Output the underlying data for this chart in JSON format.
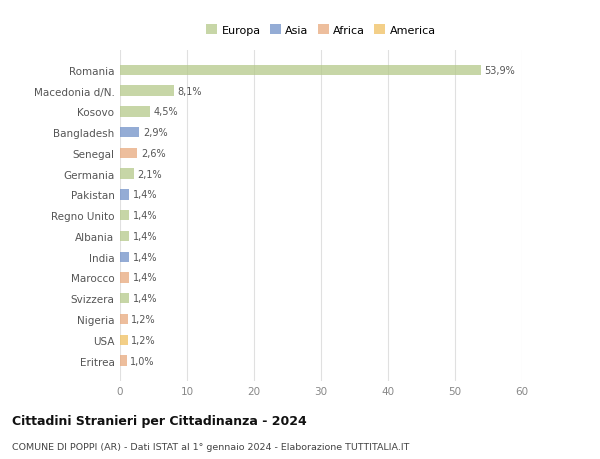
{
  "categories": [
    "Eritrea",
    "USA",
    "Nigeria",
    "Svizzera",
    "Marocco",
    "India",
    "Albania",
    "Regno Unito",
    "Pakistan",
    "Germania",
    "Senegal",
    "Bangladesh",
    "Kosovo",
    "Macedonia d/N.",
    "Romania"
  ],
  "values": [
    1.0,
    1.2,
    1.2,
    1.4,
    1.4,
    1.4,
    1.4,
    1.4,
    1.4,
    2.1,
    2.6,
    2.9,
    4.5,
    8.1,
    53.9
  ],
  "labels": [
    "1,0%",
    "1,2%",
    "1,2%",
    "1,4%",
    "1,4%",
    "1,4%",
    "1,4%",
    "1,4%",
    "1,4%",
    "2,1%",
    "2,6%",
    "2,9%",
    "4,5%",
    "8,1%",
    "53,9%"
  ],
  "colors": [
    "#e8a87c",
    "#f0c060",
    "#e8a87c",
    "#b5c98a",
    "#e8a87c",
    "#7090c8",
    "#b5c98a",
    "#b5c98a",
    "#7090c8",
    "#b5c98a",
    "#e8a87c",
    "#7090c8",
    "#b5c98a",
    "#b5c98a",
    "#b5c98a"
  ],
  "legend_labels": [
    "Europa",
    "Asia",
    "Africa",
    "America"
  ],
  "legend_colors": [
    "#b5c98a",
    "#7090c8",
    "#e8a87c",
    "#f0c060"
  ],
  "title": "Cittadini Stranieri per Cittadinanza - 2024",
  "subtitle": "COMUNE DI POPPI (AR) - Dati ISTAT al 1° gennaio 2024 - Elaborazione TUTTITALIA.IT",
  "xlim": [
    0,
    60
  ],
  "xticks": [
    0,
    10,
    20,
    30,
    40,
    50,
    60
  ],
  "background_color": "#ffffff",
  "grid_color": "#e0e0e0"
}
